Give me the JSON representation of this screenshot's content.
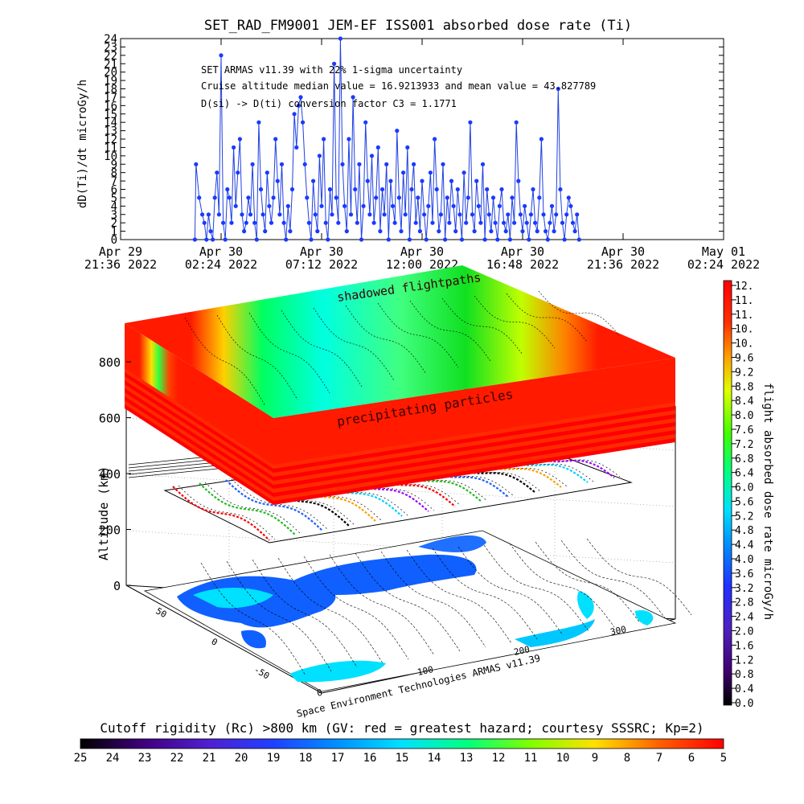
{
  "top_chart": {
    "title": "SET_RAD_FM9001  JEM-EF ISS001 absorbed dose rate (Ti)",
    "ylabel": "dD(Ti)/dt microGy/h",
    "annotations": [
      "SET ARMAS v11.39 with 22% 1-sigma uncertainty",
      "Cruise altitude median value = 16.9213933 and mean value = 43.827789",
      "D(si) -> D(ti) conversion factor C3 = 1.1771"
    ],
    "x_ticks": [
      {
        "l1": "Apr 29",
        "l2": "21:36 2022"
      },
      {
        "l1": "Apr 30",
        "l2": "02:24 2022"
      },
      {
        "l1": "Apr 30",
        "l2": "07:12 2022"
      },
      {
        "l1": "Apr 30",
        "l2": "12:00 2022"
      },
      {
        "l1": "Apr 30",
        "l2": "16:48 2022"
      },
      {
        "l1": "Apr 30",
        "l2": "21:36 2022"
      },
      {
        "l1": "May 01",
        "l2": "02:24 2022"
      }
    ],
    "y_ticks": [
      "0",
      "1",
      "2",
      "3",
      "4",
      "5",
      "6",
      "7",
      "8",
      "9",
      "10",
      "11",
      "12",
      "13",
      "14",
      "15",
      "16",
      "17",
      "18",
      "19",
      "20",
      "21",
      "22",
      "23",
      "24"
    ],
    "line_color": "#2040e0",
    "marker_color": "#1a3aff"
  },
  "chart_data": {
    "type": "line",
    "title": "SET_RAD_FM9001  JEM-EF ISS001 absorbed dose rate (Ti)",
    "xlabel": "",
    "ylabel": "dD(Ti)/dt microGy/h",
    "ylim": [
      0,
      24
    ],
    "xlim": [
      "2022-04-29 21:36",
      "2022-05-01 02:24"
    ],
    "series": [
      {
        "values_hours_from_start": [
          [
            3.55,
            0
          ],
          [
            3.6,
            9
          ],
          [
            3.75,
            5
          ],
          [
            3.9,
            3
          ],
          [
            4.0,
            2
          ],
          [
            4.1,
            0
          ],
          [
            4.2,
            3
          ],
          [
            4.3,
            1
          ],
          [
            4.4,
            0
          ],
          [
            4.5,
            5
          ],
          [
            4.6,
            8
          ],
          [
            4.7,
            3
          ],
          [
            4.8,
            22
          ],
          [
            4.9,
            2
          ],
          [
            5.0,
            0
          ],
          [
            5.1,
            6
          ],
          [
            5.2,
            5
          ],
          [
            5.3,
            2
          ],
          [
            5.4,
            11
          ],
          [
            5.5,
            4
          ],
          [
            5.6,
            8
          ],
          [
            5.7,
            12
          ],
          [
            5.8,
            3
          ],
          [
            5.9,
            1
          ],
          [
            6.0,
            2
          ],
          [
            6.1,
            5
          ],
          [
            6.2,
            3
          ],
          [
            6.3,
            9
          ],
          [
            6.4,
            2
          ],
          [
            6.5,
            0
          ],
          [
            6.6,
            14
          ],
          [
            6.7,
            6
          ],
          [
            6.8,
            3
          ],
          [
            6.9,
            1
          ],
          [
            7.0,
            8
          ],
          [
            7.1,
            4
          ],
          [
            7.2,
            2
          ],
          [
            7.3,
            5
          ],
          [
            7.4,
            12
          ],
          [
            7.5,
            7
          ],
          [
            7.6,
            3
          ],
          [
            7.7,
            9
          ],
          [
            7.8,
            2
          ],
          [
            7.9,
            0
          ],
          [
            8.0,
            4
          ],
          [
            8.1,
            1
          ],
          [
            8.2,
            6
          ],
          [
            8.3,
            15
          ],
          [
            8.4,
            11
          ],
          [
            8.5,
            16
          ],
          [
            8.6,
            17
          ],
          [
            8.7,
            14
          ],
          [
            8.8,
            9
          ],
          [
            8.9,
            5
          ],
          [
            9.0,
            2
          ],
          [
            9.1,
            0
          ],
          [
            9.2,
            7
          ],
          [
            9.3,
            3
          ],
          [
            9.4,
            1
          ],
          [
            9.5,
            10
          ],
          [
            9.6,
            4
          ],
          [
            9.7,
            12
          ],
          [
            9.8,
            2
          ],
          [
            9.9,
            0
          ],
          [
            10.0,
            6
          ],
          [
            10.1,
            3
          ],
          [
            10.2,
            21
          ],
          [
            10.3,
            5
          ],
          [
            10.4,
            2
          ],
          [
            10.5,
            24
          ],
          [
            10.6,
            9
          ],
          [
            10.7,
            4
          ],
          [
            10.8,
            1
          ],
          [
            10.9,
            12
          ],
          [
            11.0,
            3
          ],
          [
            11.1,
            17
          ],
          [
            11.2,
            6
          ],
          [
            11.3,
            2
          ],
          [
            11.4,
            9
          ],
          [
            11.5,
            0
          ],
          [
            11.6,
            4
          ],
          [
            11.7,
            14
          ],
          [
            11.8,
            7
          ],
          [
            11.9,
            3
          ],
          [
            12.0,
            10
          ],
          [
            12.1,
            2
          ],
          [
            12.2,
            5
          ],
          [
            12.3,
            11
          ],
          [
            12.4,
            1
          ],
          [
            12.5,
            6
          ],
          [
            12.6,
            3
          ],
          [
            12.7,
            9
          ],
          [
            12.8,
            0
          ],
          [
            12.9,
            7
          ],
          [
            13.0,
            4
          ],
          [
            13.1,
            2
          ],
          [
            13.2,
            13
          ],
          [
            13.3,
            5
          ],
          [
            13.4,
            1
          ],
          [
            13.5,
            8
          ],
          [
            13.6,
            3
          ],
          [
            13.7,
            11
          ],
          [
            13.8,
            0
          ],
          [
            13.9,
            6
          ],
          [
            14.0,
            9
          ],
          [
            14.1,
            2
          ],
          [
            14.2,
            5
          ],
          [
            14.3,
            1
          ],
          [
            14.4,
            7
          ],
          [
            14.5,
            3
          ],
          [
            14.6,
            0
          ],
          [
            14.7,
            4
          ],
          [
            14.8,
            8
          ],
          [
            14.9,
            2
          ],
          [
            15.0,
            12
          ],
          [
            15.1,
            6
          ],
          [
            15.2,
            1
          ],
          [
            15.3,
            3
          ],
          [
            15.4,
            9
          ],
          [
            15.5,
            0
          ],
          [
            15.6,
            5
          ],
          [
            15.7,
            2
          ],
          [
            15.8,
            7
          ],
          [
            15.9,
            4
          ],
          [
            16.0,
            1
          ],
          [
            16.1,
            6
          ],
          [
            16.2,
            3
          ],
          [
            16.3,
            0
          ],
          [
            16.4,
            8
          ],
          [
            16.5,
            2
          ],
          [
            16.6,
            5
          ],
          [
            16.7,
            14
          ],
          [
            16.8,
            3
          ],
          [
            16.9,
            1
          ],
          [
            17.0,
            7
          ],
          [
            17.1,
            4
          ],
          [
            17.2,
            2
          ],
          [
            17.3,
            9
          ],
          [
            17.4,
            0
          ],
          [
            17.5,
            6
          ],
          [
            17.6,
            3
          ],
          [
            17.7,
            1
          ],
          [
            17.8,
            5
          ],
          [
            17.9,
            2
          ],
          [
            18.0,
            0
          ],
          [
            18.1,
            4
          ],
          [
            18.2,
            6
          ],
          [
            18.3,
            2
          ],
          [
            18.4,
            1
          ],
          [
            18.5,
            3
          ],
          [
            18.6,
            0
          ],
          [
            18.7,
            5
          ],
          [
            18.8,
            2
          ],
          [
            18.9,
            14
          ],
          [
            19.0,
            7
          ],
          [
            19.1,
            3
          ],
          [
            19.2,
            1
          ],
          [
            19.3,
            4
          ],
          [
            19.4,
            2
          ],
          [
            19.5,
            0
          ],
          [
            19.6,
            3
          ],
          [
            19.7,
            6
          ],
          [
            19.8,
            2
          ],
          [
            19.9,
            1
          ],
          [
            20.0,
            5
          ],
          [
            20.1,
            12
          ],
          [
            20.2,
            3
          ],
          [
            20.3,
            1
          ],
          [
            20.4,
            0
          ],
          [
            20.5,
            2
          ],
          [
            20.6,
            4
          ],
          [
            20.7,
            1
          ],
          [
            20.8,
            3
          ],
          [
            20.9,
            18
          ],
          [
            21.0,
            6
          ],
          [
            21.1,
            2
          ],
          [
            21.2,
            0
          ],
          [
            21.3,
            3
          ],
          [
            21.4,
            5
          ],
          [
            21.5,
            4
          ],
          [
            21.6,
            2
          ],
          [
            21.7,
            1
          ],
          [
            21.8,
            3
          ],
          [
            21.9,
            0
          ]
        ]
      }
    ]
  },
  "scene3d": {
    "zlabel": "Altitude (km)",
    "z_ticks": [
      "0",
      "200",
      "400",
      "600",
      "800"
    ],
    "lat_ticks": [
      "50",
      "0",
      "-50"
    ],
    "lon_ticks": [
      "0",
      "100",
      "200",
      "300"
    ],
    "label_shadowed": "shadowed flightpaths",
    "label_precip": "precipitating particles",
    "credit": "Space Environment Technologies ARMAS v11.39"
  },
  "colorbar_right": {
    "label": "flight absorbed dose rate microGy/h",
    "ticks": [
      "12.",
      "11.",
      "11.",
      "10.",
      "10.",
      "9.6",
      "9.2",
      "8.8",
      "8.4",
      "8.0",
      "7.6",
      "7.2",
      "6.8",
      "6.4",
      "6.0",
      "5.6",
      "5.2",
      "4.8",
      "4.4",
      "4.0",
      "3.6",
      "3.2",
      "2.8",
      "2.4",
      "2.0",
      "1.6",
      "1.2",
      "0.8",
      "0.4",
      "0.0"
    ]
  },
  "colorbar_bottom": {
    "label": "Cutoff rigidity (Rc) >800 km (GV: red = greatest hazard; courtesy SSSRC; Kp=2)",
    "ticks": [
      "25",
      "24",
      "23",
      "22",
      "21",
      "20",
      "19",
      "18",
      "17",
      "16",
      "15",
      "14",
      "13",
      "12",
      "11",
      "10",
      "9",
      "8",
      "7",
      "6",
      "5"
    ]
  },
  "colors": {
    "hazard_red": "#ff1a00",
    "safe_cyan": "#00ffff",
    "ocean_cyan": "#00e0ff",
    "land_blue": "#1060ff"
  }
}
